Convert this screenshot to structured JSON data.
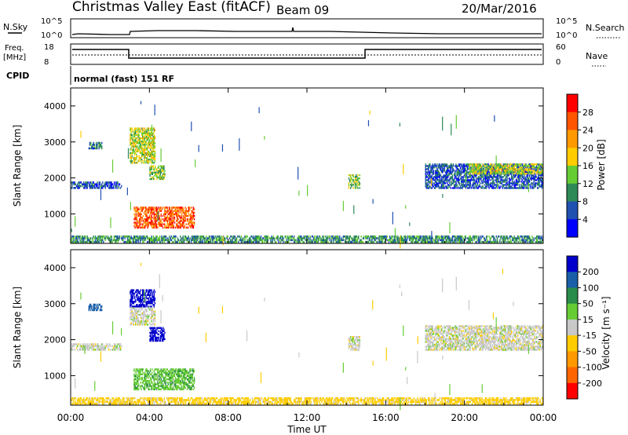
{
  "header": {
    "title": "Christmas Valley East (fitACF)",
    "beam": "Beam 09",
    "date": "20/Mar/2016"
  },
  "noise_panel": {
    "left_label": "N.Sky",
    "left_ticks": [
      "10^5",
      "10^0"
    ],
    "right_ticks": [
      "10^5",
      "10^0"
    ],
    "right_label": "N.Search"
  },
  "freq_panel": {
    "left_label_1": "Freq.",
    "left_label_2": "[MHz]",
    "left_ticks": [
      "18",
      "8"
    ],
    "right_ticks": [
      "60",
      "0"
    ],
    "right_label": "Nave"
  },
  "cpid": {
    "label": "CPID",
    "text": "normal (fast) 151 RF"
  },
  "colors": {
    "power": [
      "#0000ff",
      "#2050b0",
      "#2e8b57",
      "#66cc33",
      "#ffcc00",
      "#ff9900",
      "#ff5500",
      "#ff0000"
    ],
    "velocity": [
      "#0000cc",
      "#1a5fa8",
      "#2a8c4a",
      "#66cc33",
      "#c8c8c8",
      "#ffcc00",
      "#ff9900",
      "#ff6600",
      "#ff0000"
    ]
  },
  "chart_data": [
    {
      "type": "heatmap",
      "name": "power",
      "ylabel": "Slant Range [km]",
      "yticks": [
        "4000",
        "3000",
        "2000",
        "1000"
      ],
      "xticks": [
        "00:00",
        "04:00",
        "08:00",
        "12:00",
        "16:00",
        "20:00",
        "00:00"
      ],
      "colorbar": {
        "label": "Power [dB]",
        "ticks": [
          "28",
          "24",
          "20",
          "16",
          "12",
          "8",
          "4"
        ],
        "range": [
          0,
          32
        ]
      },
      "regions": [
        {
          "t0": 0.0,
          "t1": 24.0,
          "r0": 200,
          "r1": 400,
          "value": 10
        },
        {
          "t0": 0.0,
          "t1": 2.6,
          "r0": 1700,
          "r1": 1900,
          "value": 6
        },
        {
          "t0": 0.9,
          "t1": 1.6,
          "r0": 2800,
          "r1": 3000,
          "value": 8
        },
        {
          "t0": 3.0,
          "t1": 4.3,
          "r0": 2400,
          "r1": 3400,
          "value": 16
        },
        {
          "t0": 4.0,
          "t1": 4.8,
          "r0": 1950,
          "r1": 2350,
          "value": 14
        },
        {
          "t0": 3.2,
          "t1": 6.3,
          "r0": 600,
          "r1": 1200,
          "value": 26
        },
        {
          "t0": 14.1,
          "t1": 14.7,
          "r0": 1700,
          "r1": 2100,
          "value": 14
        },
        {
          "t0": 18.0,
          "t1": 24.0,
          "r0": 1700,
          "r1": 2400,
          "value": 6
        },
        {
          "t0": 20.2,
          "t1": 24.0,
          "r0": 2100,
          "r1": 2400,
          "value": 16
        }
      ]
    },
    {
      "type": "heatmap",
      "name": "velocity",
      "ylabel": "Slant Range [km]",
      "yticks": [
        "4000",
        "3000",
        "2000",
        "1000"
      ],
      "xticks": [
        "00:00",
        "04:00",
        "08:00",
        "12:00",
        "16:00",
        "20:00",
        "00:00"
      ],
      "xlabel": "Time UT",
      "colorbar": {
        "label": "Velocity [m s⁻¹]",
        "ticks": [
          "200",
          "100",
          "50",
          "15",
          "-15",
          "-50",
          "-100",
          "-200"
        ],
        "range": [
          -250,
          250
        ]
      },
      "regions": [
        {
          "t0": 0.0,
          "t1": 24.0,
          "r0": 200,
          "r1": 400,
          "value": -30
        },
        {
          "t0": 0.0,
          "t1": 2.6,
          "r0": 1700,
          "r1": 1900,
          "value": 0
        },
        {
          "t0": 0.9,
          "t1": 1.6,
          "r0": 2800,
          "r1": 3000,
          "value": 120
        },
        {
          "t0": 3.0,
          "t1": 4.3,
          "r0": 2900,
          "r1": 3400,
          "value": 220
        },
        {
          "t0": 3.0,
          "t1": 4.3,
          "r0": 2400,
          "r1": 2900,
          "value": 0
        },
        {
          "t0": 4.0,
          "t1": 4.8,
          "r0": 1950,
          "r1": 2350,
          "value": 220
        },
        {
          "t0": 3.2,
          "t1": 6.3,
          "r0": 600,
          "r1": 1200,
          "value": 40
        },
        {
          "t0": 14.1,
          "t1": 14.7,
          "r0": 1700,
          "r1": 2100,
          "value": 0
        },
        {
          "t0": 18.0,
          "t1": 24.0,
          "r0": 1700,
          "r1": 2400,
          "value": 0
        }
      ]
    }
  ]
}
